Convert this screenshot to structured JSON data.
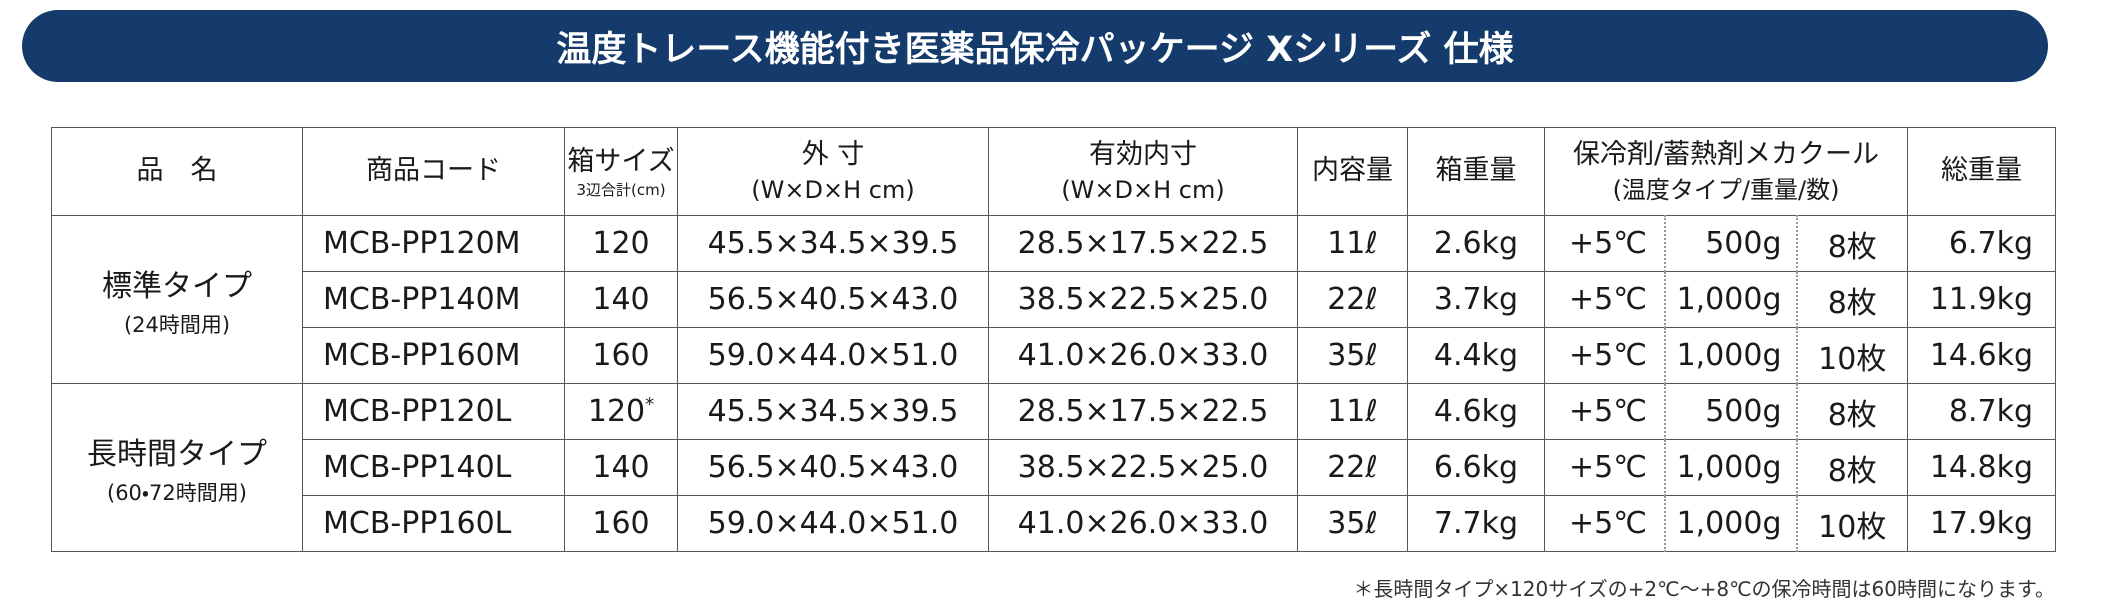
{
  "title": "温度トレース機能付き医薬品保冷パッケージ Xシリーズ 仕様",
  "table": {
    "header": {
      "name": "品　名",
      "code": "商品コード",
      "box_size": "箱サイズ",
      "box_size_note": "3辺合計(cm)",
      "outer": "外 寸",
      "outer_unit": "(W×D×H cm)",
      "inner": "有効内寸",
      "inner_unit": "(W×D×H cm)",
      "capacity": "内容量",
      "box_weight": "箱重量",
      "coolant": "保冷剤/蓄熱剤メカクール",
      "coolant_note": "(温度タイプ/重量/数)",
      "total_weight": "総重量"
    },
    "groups": [
      {
        "label": "標準タイプ",
        "sub": "(24時間用)",
        "rows": [
          {
            "code": "MCB-PP120M",
            "box": "120",
            "outer": "45.5×34.5×39.5",
            "inner": "28.5×17.5×22.5",
            "capacity": "11ℓ",
            "box_weight": "2.6kg",
            "temp": "+5℃",
            "coolant_weight": "500g",
            "count": "8枚",
            "total": "6.7kg"
          },
          {
            "code": "MCB-PP140M",
            "box": "140",
            "outer": "56.5×40.5×43.0",
            "inner": "38.5×22.5×25.0",
            "capacity": "22ℓ",
            "box_weight": "3.7kg",
            "temp": "+5℃",
            "coolant_weight": "1,000g",
            "count": "8枚",
            "total": "11.9kg"
          },
          {
            "code": "MCB-PP160M",
            "box": "160",
            "outer": "59.0×44.0×51.0",
            "inner": "41.0×26.0×33.0",
            "capacity": "35ℓ",
            "box_weight": "4.4kg",
            "temp": "+5℃",
            "coolant_weight": "1,000g",
            "count": "10枚",
            "total": "14.6kg"
          }
        ]
      },
      {
        "label": "長時間タイプ",
        "sub": "(60・72時間用)",
        "rows": [
          {
            "code": "MCB-PP120L",
            "box": "120",
            "box_mark": "*",
            "outer": "45.5×34.5×39.5",
            "inner": "28.5×17.5×22.5",
            "capacity": "11ℓ",
            "box_weight": "4.6kg",
            "temp": "+5℃",
            "coolant_weight": "500g",
            "count": "8枚",
            "total": "8.7kg"
          },
          {
            "code": "MCB-PP140L",
            "box": "140",
            "outer": "56.5×40.5×43.0",
            "inner": "38.5×22.5×25.0",
            "capacity": "22ℓ",
            "box_weight": "6.6kg",
            "temp": "+5℃",
            "coolant_weight": "1,000g",
            "count": "8枚",
            "total": "14.8kg"
          },
          {
            "code": "MCB-PP160L",
            "box": "160",
            "outer": "59.0×44.0×51.0",
            "inner": "41.0×26.0×33.0",
            "capacity": "35ℓ",
            "box_weight": "7.7kg",
            "temp": "+5℃",
            "coolant_weight": "1,000g",
            "count": "10枚",
            "total": "17.9kg"
          }
        ]
      }
    ]
  },
  "footnote": "＊長時間タイプ×120サイズの+2℃～+8℃の保冷時間は60時間になります。"
}
